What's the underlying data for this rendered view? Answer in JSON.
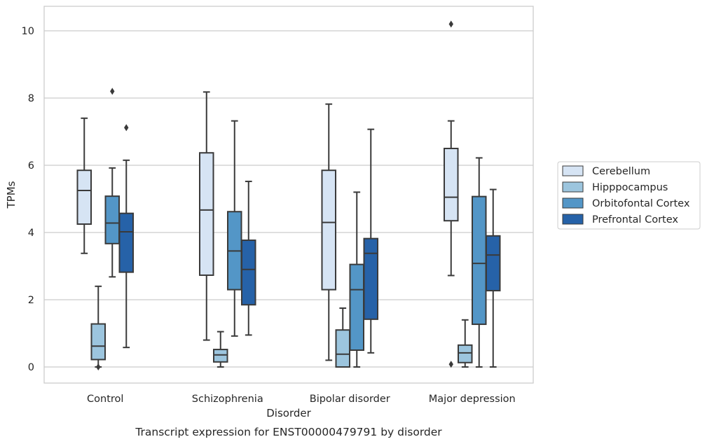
{
  "chart_data": {
    "type": "box",
    "title": "",
    "caption": "Transcript expression for ENST00000479791 by disorder",
    "xlabel": "Disorder",
    "ylabel": "TPMs",
    "ylim": [
      -0.5,
      10.7
    ],
    "yticks": [
      0,
      2,
      4,
      6,
      8,
      10
    ],
    "grid": "horizontal",
    "legend_position": "right",
    "categories": [
      "Control",
      "Schizophrenia",
      "Bipolar disorder",
      "Major depression"
    ],
    "series": [
      {
        "name": "Cerebellum",
        "color": "#d6e4f4",
        "boxes": [
          {
            "whisker_low": 3.38,
            "q1": 4.25,
            "median": 5.25,
            "q3": 5.85,
            "whisker_high": 7.4,
            "outliers": []
          },
          {
            "whisker_low": 0.8,
            "q1": 2.73,
            "median": 4.67,
            "q3": 6.37,
            "whisker_high": 8.18,
            "outliers": []
          },
          {
            "whisker_low": 0.2,
            "q1": 2.3,
            "median": 4.3,
            "q3": 5.85,
            "whisker_high": 7.82,
            "outliers": []
          },
          {
            "whisker_low": 2.72,
            "q1": 4.35,
            "median": 5.05,
            "q3": 6.5,
            "whisker_high": 7.32,
            "outliers": [
              0.08,
              10.2
            ]
          }
        ]
      },
      {
        "name": "Hipppocampus",
        "color": "#9cc5de",
        "boxes": [
          {
            "whisker_low": 0.0,
            "q1": 0.22,
            "median": 0.62,
            "q3": 1.28,
            "whisker_high": 2.4,
            "outliers": [
              0.0
            ]
          },
          {
            "whisker_low": 0.0,
            "q1": 0.15,
            "median": 0.36,
            "q3": 0.52,
            "whisker_high": 1.05,
            "outliers": []
          },
          {
            "whisker_low": 0.0,
            "q1": 0.0,
            "median": 0.38,
            "q3": 1.1,
            "whisker_high": 1.75,
            "outliers": []
          },
          {
            "whisker_low": 0.0,
            "q1": 0.13,
            "median": 0.42,
            "q3": 0.65,
            "whisker_high": 1.4,
            "outliers": []
          }
        ]
      },
      {
        "name": "Orbitofontal Cortex",
        "color": "#5396c7",
        "boxes": [
          {
            "whisker_low": 2.68,
            "q1": 3.67,
            "median": 4.28,
            "q3": 5.08,
            "whisker_high": 5.92,
            "outliers": [
              8.2
            ]
          },
          {
            "whisker_low": 0.92,
            "q1": 2.3,
            "median": 3.45,
            "q3": 4.62,
            "whisker_high": 7.32,
            "outliers": []
          },
          {
            "whisker_low": 0.0,
            "q1": 0.5,
            "median": 2.3,
            "q3": 3.05,
            "whisker_high": 5.2,
            "outliers": []
          },
          {
            "whisker_low": 0.0,
            "q1": 1.27,
            "median": 3.08,
            "q3": 5.07,
            "whisker_high": 6.22,
            "outliers": []
          }
        ]
      },
      {
        "name": "Prefrontal Cortex",
        "color": "#2662a8",
        "boxes": [
          {
            "whisker_low": 0.58,
            "q1": 2.82,
            "median": 4.02,
            "q3": 4.57,
            "whisker_high": 6.15,
            "outliers": [
              7.12
            ]
          },
          {
            "whisker_low": 0.95,
            "q1": 1.85,
            "median": 2.9,
            "q3": 3.77,
            "whisker_high": 5.52,
            "outliers": []
          },
          {
            "whisker_low": 0.42,
            "q1": 1.42,
            "median": 3.38,
            "q3": 3.82,
            "whisker_high": 7.07,
            "outliers": []
          },
          {
            "whisker_low": 0.0,
            "q1": 2.27,
            "median": 3.33,
            "q3": 3.9,
            "whisker_high": 5.28,
            "outliers": []
          }
        ]
      }
    ]
  }
}
